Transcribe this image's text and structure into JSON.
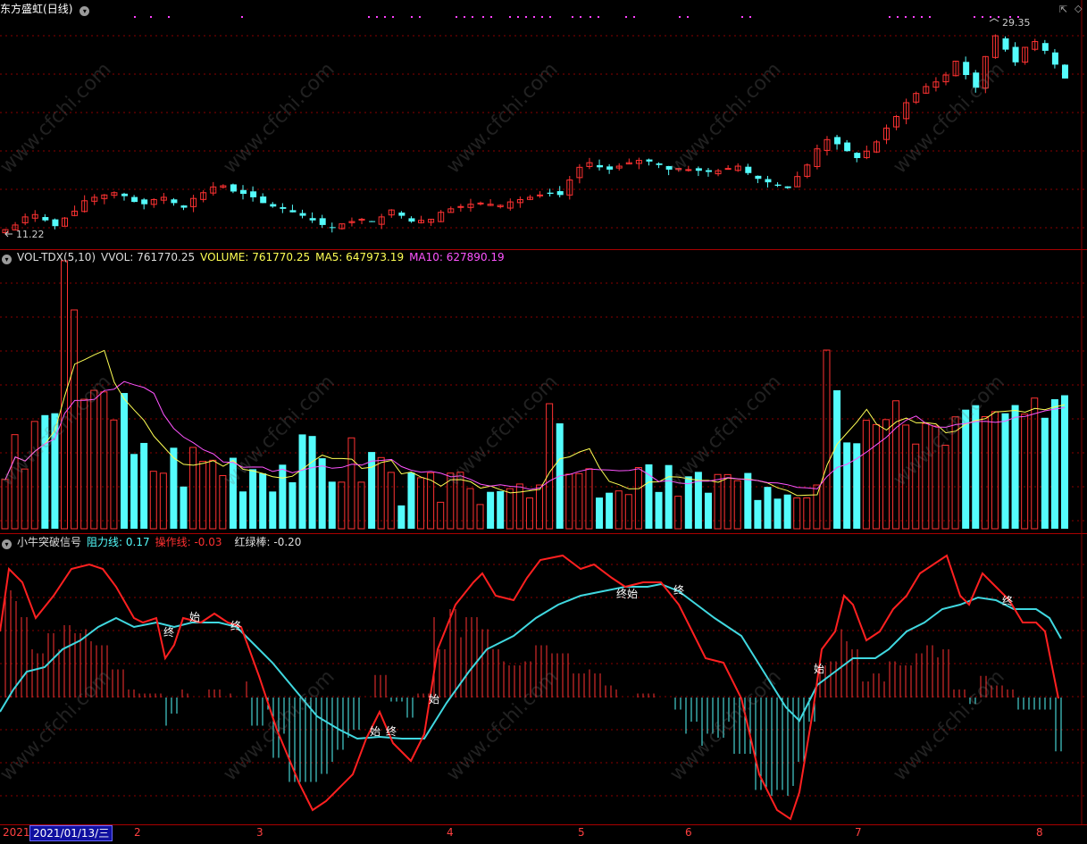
{
  "main": {
    "title": "东方盛虹",
    "period": "(日线)",
    "high_label": "29.35",
    "low_label": "11.22",
    "corner_icons": [
      "pin-icon",
      "diamond-icon"
    ],
    "close_series": [
      11.8,
      12.2,
      12.9,
      13.1,
      12.6,
      12.1,
      12.8,
      13.4,
      14.3,
      14.6,
      14.8,
      15.0,
      14.7,
      14.2,
      14.0,
      14.4,
      14.6,
      14.1,
      13.7,
      14.5,
      15.0,
      15.5,
      15.6,
      15.1,
      14.9,
      14.6,
      14.1,
      13.8,
      13.6,
      13.3,
      13.0,
      12.6,
      12.2,
      12.0,
      12.3,
      12.5,
      12.7,
      12.5,
      12.9,
      13.5,
      13.0,
      12.5,
      12.6,
      12.7,
      13.3,
      13.6,
      13.8,
      14.0,
      14.1,
      14.0,
      13.9,
      14.2,
      14.4,
      14.6,
      14.8,
      14.9,
      14.8,
      16.1,
      17.2,
      17.6,
      17.2,
      17.0,
      17.3,
      17.6,
      17.8,
      17.7,
      17.4,
      17.0,
      17.1,
      17.0,
      16.9,
      16.8,
      16.9,
      17.1,
      17.3,
      16.7,
      16.2,
      15.9,
      15.6,
      15.4,
      16.4,
      17.4,
      18.8,
      19.6,
      19.2,
      18.6,
      18.0,
      18.6,
      19.4,
      20.6,
      21.6,
      22.8,
      23.6,
      24.2,
      24.6,
      25.2,
      26.4,
      25.2,
      24.1,
      26.8,
      28.6,
      27.4,
      26.3,
      27.6,
      28.1,
      27.3,
      26.1,
      24.9
    ]
  },
  "volume": {
    "indicator": "VOL-TDX(5,10)",
    "vvol": "VVOL: 761770.25",
    "volume": "VOLUME: 761770.25",
    "ma5": "MA5: 647973.19",
    "ma10": "MA10: 627890.19"
  },
  "signal": {
    "name": "小牛突破信号",
    "resist": "阻力线: 0.17",
    "operate": "操作线: -0.03",
    "redgreen": "红绿棒: -0.20",
    "mark_start": "始",
    "mark_end": "终"
  },
  "colors": {
    "up": "#ff3232",
    "down": "#54fcfc",
    "vma5": "#ffff54",
    "vma10": "#ff54ff",
    "resist": "#40d8e0",
    "operate": "#ff2020",
    "grid": "#8a0000"
  },
  "datebar": {
    "year_stub": "2021",
    "current_date": "2021/01/13/三",
    "months": [
      "2",
      "3",
      "4",
      "5",
      "6",
      "7",
      "8"
    ]
  },
  "watermark": "www.cfchi.com"
}
